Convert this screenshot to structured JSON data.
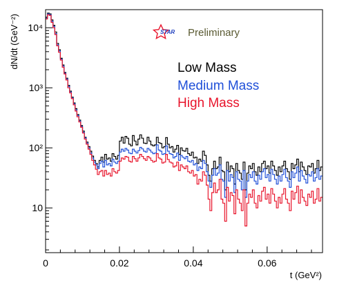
{
  "chart_data": {
    "type": "line",
    "style": "step-histogram",
    "x_label": "t (GeV²)",
    "y_label": "dN/dt (GeV⁻²)",
    "y_scale": "log",
    "xlim": [
      0,
      0.075
    ],
    "ylim": [
      1.8,
      20000
    ],
    "x_ticks": [
      {
        "value": 0,
        "label": "0"
      },
      {
        "value": 0.02,
        "label": "0.02"
      },
      {
        "value": 0.04,
        "label": "0.04"
      },
      {
        "value": 0.06,
        "label": "0.06"
      }
    ],
    "y_ticks": [
      {
        "value": 10,
        "label": "10"
      },
      {
        "value": 100,
        "label": "10²"
      },
      {
        "value": 1000,
        "label": "10³"
      },
      {
        "value": 10000,
        "label": "10⁴"
      }
    ],
    "bin_width": 0.0005,
    "series": [
      {
        "name": "Low Mass",
        "color": "#000000",
        "values": [
          15000,
          17500,
          17000,
          13500,
          11000,
          8500,
          5500,
          4300,
          3100,
          2400,
          1800,
          1450,
          1100,
          880,
          700,
          560,
          450,
          360,
          290,
          235,
          190,
          150,
          125,
          105,
          88,
          73,
          62,
          55,
          48,
          62,
          70,
          58,
          78,
          65,
          68,
          60,
          80,
          72,
          65,
          75,
          130,
          150,
          120,
          155,
          145,
          115,
          108,
          160,
          130,
          112,
          140,
          165,
          145,
          120,
          118,
          150,
          130,
          112,
          108,
          112,
          150,
          122,
          118,
          100,
          105,
          148,
          115,
          100,
          105,
          85,
          95,
          110,
          78,
          100,
          90,
          88,
          98,
          80,
          75,
          85,
          68,
          70,
          55,
          65,
          60,
          88,
          75,
          52,
          35,
          28,
          45,
          60,
          45,
          48,
          70,
          42,
          40,
          20,
          58,
          40,
          50,
          45,
          25,
          55,
          42,
          38,
          30,
          58,
          20,
          38,
          50,
          45,
          55,
          40,
          35,
          48,
          40,
          55,
          60,
          45,
          50,
          38,
          60,
          50,
          42,
          35,
          48,
          40,
          50,
          60,
          45,
          40,
          30,
          55,
          45,
          52,
          65,
          40,
          58,
          48,
          42,
          36,
          50,
          48,
          55,
          38,
          45,
          62,
          42,
          48,
          35
        ]
      },
      {
        "name": "Medium Mass",
        "color": "#1f4fd8",
        "values": [
          14500,
          17000,
          16500,
          12800,
          10500,
          8000,
          5200,
          4100,
          3000,
          2300,
          1750,
          1400,
          1050,
          850,
          680,
          540,
          430,
          345,
          280,
          228,
          182,
          146,
          120,
          100,
          82,
          68,
          58,
          52,
          45,
          55,
          60,
          48,
          62,
          52,
          55,
          50,
          65,
          58,
          55,
          60,
          85,
          95,
          88,
          98,
          92,
          82,
          80,
          95,
          88,
          82,
          90,
          102,
          96,
          88,
          85,
          98,
          92,
          85,
          80,
          82,
          112,
          92,
          88,
          78,
          80,
          108,
          88,
          80,
          78,
          68,
          72,
          82,
          62,
          75,
          70,
          66,
          72,
          60,
          58,
          62,
          52,
          55,
          42,
          48,
          45,
          62,
          55,
          40,
          28,
          22,
          35,
          45,
          35,
          38,
          52,
          30,
          28,
          15,
          42,
          28,
          36,
          32,
          18,
          40,
          30,
          28,
          20,
          42,
          15,
          28,
          36,
          32,
          40,
          28,
          25,
          35,
          30,
          40,
          45,
          32,
          36,
          28,
          44,
          36,
          30,
          25,
          34,
          28,
          36,
          44,
          32,
          28,
          22,
          40,
          32,
          38,
          48,
          28,
          42,
          34,
          30,
          26,
          36,
          34,
          40,
          28,
          32,
          45,
          30,
          34,
          25
        ]
      },
      {
        "name": "High Mass",
        "color": "#e8142b",
        "values": [
          14000,
          16500,
          16000,
          12300,
          10000,
          7700,
          5000,
          3900,
          2900,
          2200,
          1700,
          1350,
          1000,
          820,
          660,
          520,
          410,
          330,
          270,
          220,
          176,
          140,
          115,
          95,
          78,
          62,
          52,
          44,
          36,
          40,
          42,
          34,
          42,
          36,
          38,
          34,
          45,
          40,
          38,
          42,
          60,
          68,
          65,
          72,
          70,
          60,
          58,
          72,
          66,
          60,
          68,
          78,
          72,
          66,
          62,
          72,
          68,
          62,
          58,
          60,
          80,
          68,
          65,
          56,
          58,
          78,
          64,
          58,
          56,
          48,
          50,
          58,
          42,
          52,
          48,
          45,
          50,
          40,
          38,
          42,
          34,
          36,
          25,
          30,
          28,
          40,
          35,
          24,
          14,
          9,
          18,
          26,
          18,
          20,
          30,
          14,
          12,
          6,
          22,
          13,
          18,
          16,
          8,
          20,
          14,
          12,
          9,
          20,
          5,
          12,
          17,
          15,
          20,
          12,
          10,
          16,
          13,
          19,
          22,
          14,
          17,
          12,
          21,
          17,
          13,
          10,
          15,
          12,
          17,
          21,
          14,
          12,
          9,
          19,
          14,
          18,
          23,
          12,
          20,
          15,
          13,
          11,
          17,
          15,
          19,
          12,
          14,
          21,
          13,
          15,
          10
        ]
      }
    ]
  },
  "annotations": {
    "logo_text": "STAR",
    "preliminary": "Preliminary",
    "logo_color": "#e8142b",
    "preliminary_color": "#5a5a32"
  },
  "legend": [
    {
      "label": "Low Mass",
      "color": "#000000"
    },
    {
      "label": "Medium Mass",
      "color": "#1f4fd8"
    },
    {
      "label": "High Mass",
      "color": "#e8142b"
    }
  ]
}
